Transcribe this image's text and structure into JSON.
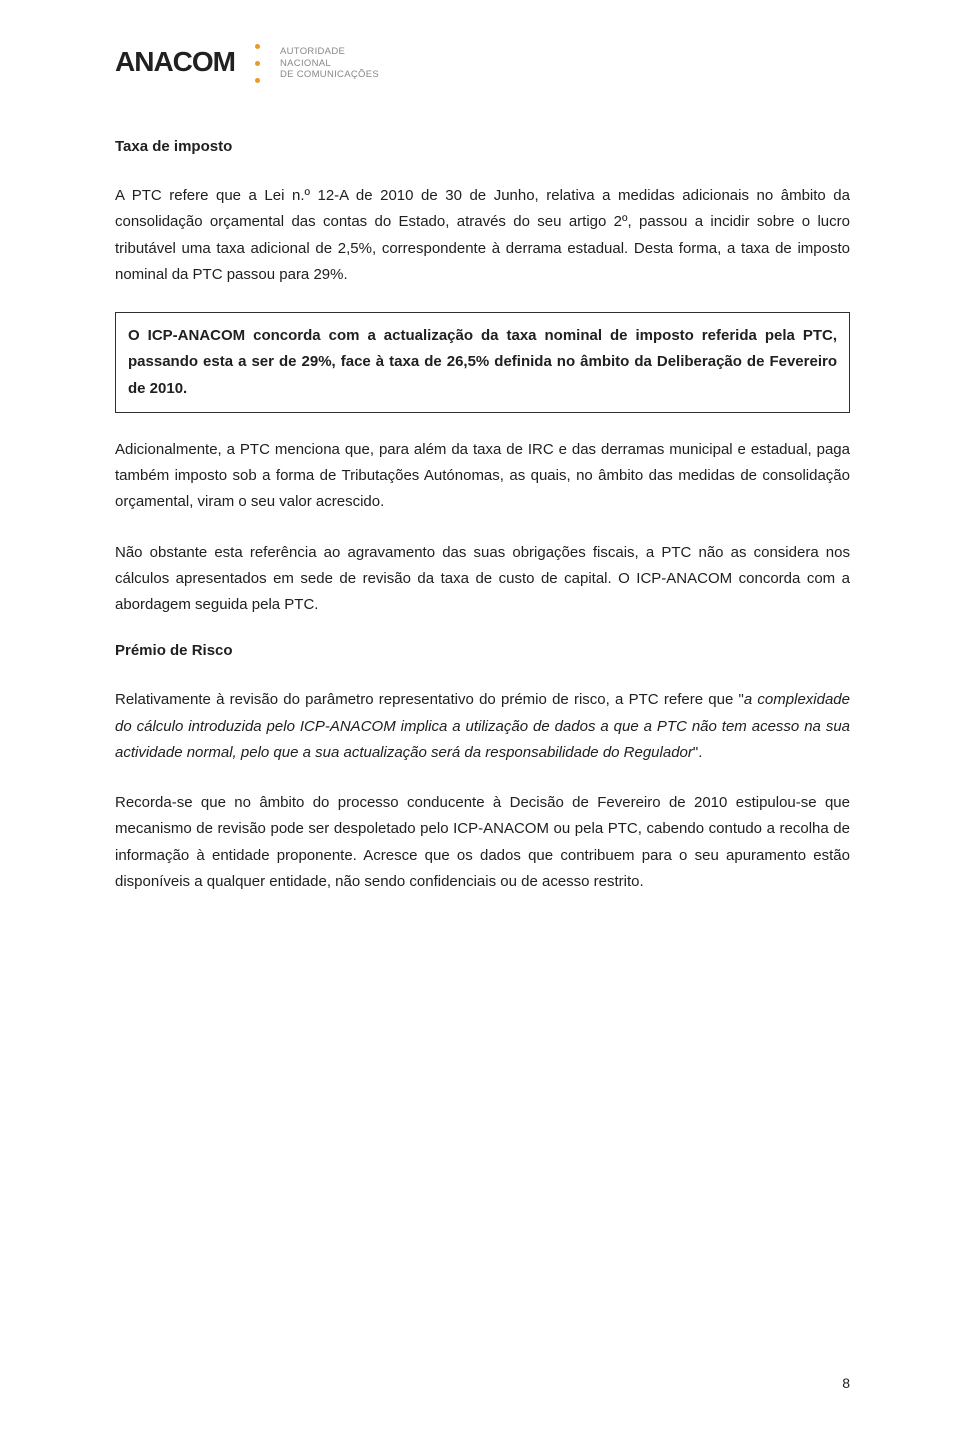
{
  "logo": {
    "brand": "ANACOM",
    "subtitle_line1": "AUTORIDADE",
    "subtitle_line2": "NACIONAL",
    "subtitle_line3": "DE COMUNICAÇÕES",
    "dot_colors": [
      "#e89a2f",
      "#e89a2f",
      "#e89a2f"
    ]
  },
  "heading1": "Taxa de imposto",
  "p1": "A PTC refere que a Lei n.º 12-A de 2010 de 30 de Junho, relativa a medidas adicionais no âmbito da consolidação orçamental das contas do Estado, através do seu artigo 2º, passou a incidir sobre o lucro tributável uma taxa adicional de 2,5%, correspondente à derrama estadual. Desta forma, a taxa de imposto nominal da PTC passou para 29%.",
  "box1": "O ICP-ANACOM concorda com a actualização da taxa nominal de imposto referida pela PTC, passando esta a ser de 29%, face à taxa de 26,5% definida no âmbito da Deliberação de Fevereiro de 2010.",
  "p2": "Adicionalmente, a PTC menciona que, para além da taxa de IRC e das derramas municipal e estadual, paga também imposto sob a forma de Tributações Autónomas, as quais, no âmbito das medidas de consolidação orçamental, viram o seu valor acrescido.",
  "p3": "Não obstante esta referência ao agravamento das suas obrigações fiscais, a PTC não as considera nos cálculos apresentados em sede de revisão da taxa de custo de capital. O ICP-ANACOM concorda com a abordagem seguida pela PTC.",
  "heading2": "Prémio de Risco",
  "p4_pre": "Relativamente à revisão do parâmetro representativo do prémio de risco, a PTC refere que \"",
  "p4_italic": "a complexidade do cálculo introduzida pelo ICP-ANACOM implica a utilização de dados a que a PTC não tem acesso na sua actividade normal, pelo que a sua actualização será da responsabilidade do Regulador",
  "p4_post": "\".",
  "p5": "Recorda-se que no âmbito do processo conducente à Decisão de Fevereiro de 2010 estipulou-se que mecanismo de revisão pode ser despoletado pelo ICP-ANACOM ou pela PTC, cabendo contudo a recolha de informação à entidade proponente. Acresce que os dados que contribuem para o seu apuramento estão disponíveis a qualquer entidade, não sendo confidenciais ou de acesso restrito.",
  "page_number": "8"
}
